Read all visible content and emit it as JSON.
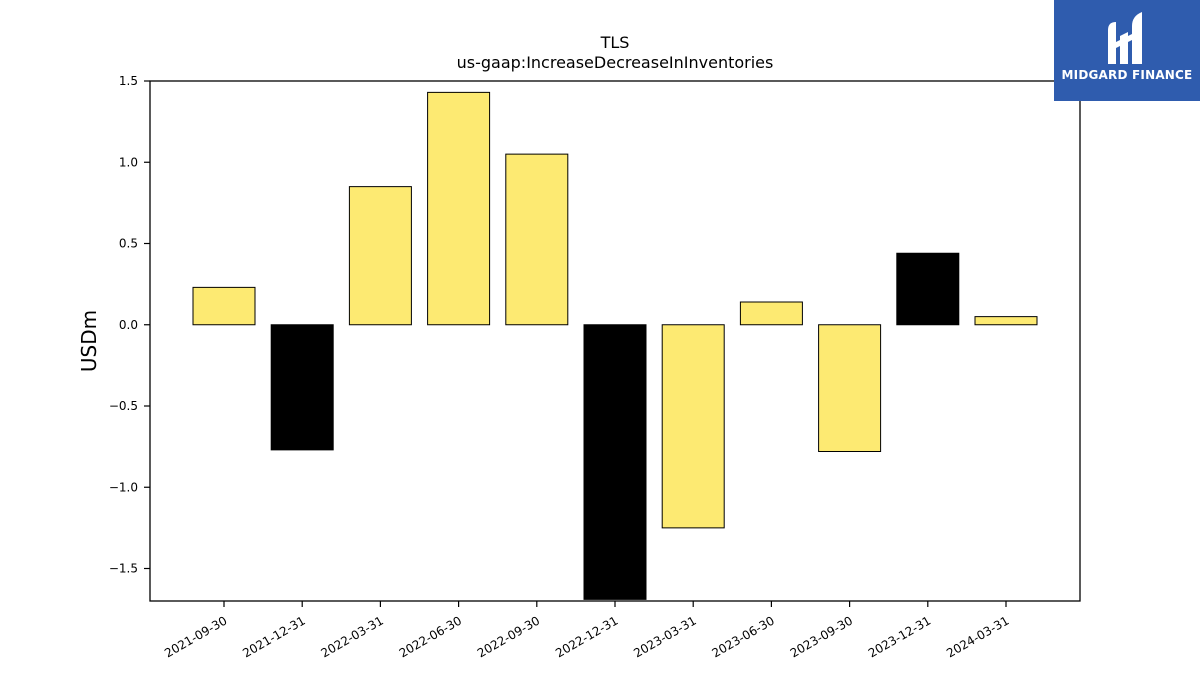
{
  "chart_data": {
    "type": "bar",
    "title": "TLS",
    "subtitle": "us-gaap:IncreaseDecreaseInInventories",
    "xlabel": "",
    "ylabel": "USDm",
    "ylim": [
      -1.7,
      1.5
    ],
    "yticks": [
      1.5,
      1.0,
      0.5,
      0.0,
      -0.5,
      -1.0,
      -1.5
    ],
    "ytick_labels": [
      "1.5",
      "1.0",
      "0.5",
      "0.0",
      "−0.5",
      "−1.0",
      "−1.5"
    ],
    "categories": [
      "2021-09-30",
      "2021-12-31",
      "2022-03-31",
      "2022-06-30",
      "2022-09-30",
      "2022-12-31",
      "2023-03-31",
      "2023-06-30",
      "2023-09-30",
      "2023-12-31",
      "2024-03-31"
    ],
    "values": [
      0.23,
      -0.77,
      0.85,
      1.43,
      1.05,
      -1.69,
      -1.25,
      0.14,
      -0.78,
      0.44,
      0.05
    ],
    "bar_colors": [
      "#fdea72",
      "#000000",
      "#fdea72",
      "#fdea72",
      "#fdea72",
      "#000000",
      "#fdea72",
      "#fdea72",
      "#fdea72",
      "#000000",
      "#fdea72"
    ],
    "grid": false,
    "legend": "none"
  },
  "logo": {
    "text": "MIDGARD FINANCE",
    "background": "#2f5cae",
    "icon": "midgard-logo-icon"
  }
}
